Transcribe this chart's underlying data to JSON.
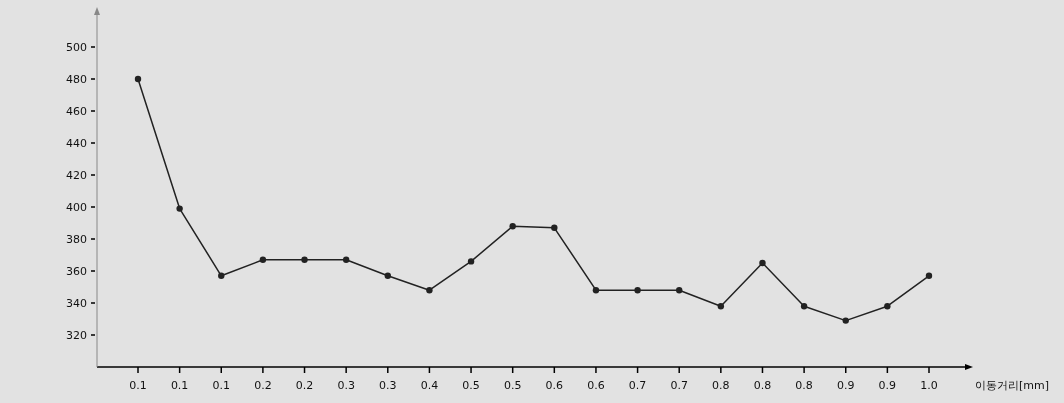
{
  "chart_data": {
    "type": "line",
    "xlabel": "이동거리[mm]",
    "categories": [
      "0.1",
      "0.1",
      "0.1",
      "0.2",
      "0.2",
      "0.3",
      "0.3",
      "0.4",
      "0.5",
      "0.5",
      "0.6",
      "0.6",
      "0.7",
      "0.7",
      "0.8",
      "0.8",
      "0.8",
      "0.9",
      "0.9",
      "1.0"
    ],
    "series": [
      {
        "color": "#222222",
        "values": [
          480,
          399,
          357,
          367,
          367,
          367,
          357,
          348,
          366,
          388,
          387,
          348,
          348,
          348,
          338,
          365,
          338,
          329,
          338,
          357
        ]
      }
    ],
    "ylim": [
      300,
      520
    ],
    "yticks": [
      320,
      340,
      360,
      380,
      400,
      420,
      440,
      460,
      480,
      500
    ],
    "grid": false,
    "marker": "circle",
    "line_style": "solid"
  }
}
